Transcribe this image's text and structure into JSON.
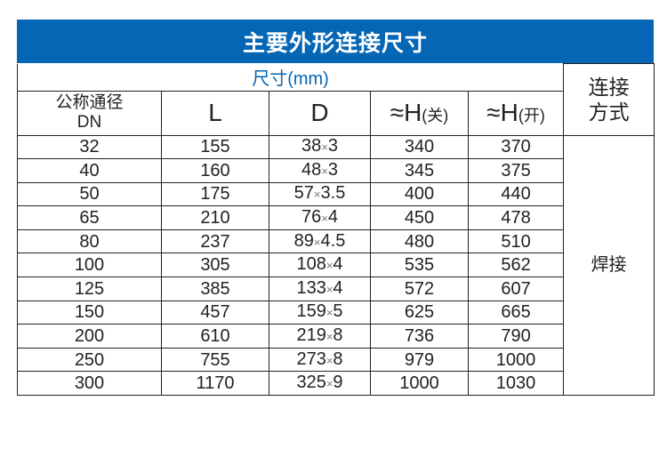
{
  "title": "主要外形连接尺寸",
  "subheader": "尺寸(mm)",
  "headers": {
    "dn": "公称通径",
    "dn2": "DN",
    "L": "L",
    "D": "D",
    "h_close": "≈H",
    "h_close_note": "(关)",
    "h_open": "≈H",
    "h_open_note": "(开)",
    "connection": "连接方式"
  },
  "connection_value": "焊接",
  "rows": [
    {
      "dn": "32",
      "L": "155",
      "D": [
        "38",
        "3"
      ],
      "h_close": "340",
      "h_open": "370"
    },
    {
      "dn": "40",
      "L": "160",
      "D": [
        "48",
        "3"
      ],
      "h_close": "345",
      "h_open": "375"
    },
    {
      "dn": "50",
      "L": "175",
      "D": [
        "57",
        "3.5"
      ],
      "h_close": "400",
      "h_open": "440"
    },
    {
      "dn": "65",
      "L": "210",
      "D": [
        "76",
        "4"
      ],
      "h_close": "450",
      "h_open": "478"
    },
    {
      "dn": "80",
      "L": "237",
      "D": [
        "89",
        "4.5"
      ],
      "h_close": "480",
      "h_open": "510"
    },
    {
      "dn": "100",
      "L": "305",
      "D": [
        "108",
        "4"
      ],
      "h_close": "535",
      "h_open": "562"
    },
    {
      "dn": "125",
      "L": "385",
      "D": [
        "133",
        "4"
      ],
      "h_close": "572",
      "h_open": "607"
    },
    {
      "dn": "150",
      "L": "457",
      "D": [
        "159",
        "5"
      ],
      "h_close": "625",
      "h_open": "665"
    },
    {
      "dn": "200",
      "L": "610",
      "D": [
        "219",
        "8"
      ],
      "h_close": "736",
      "h_open": "790"
    },
    {
      "dn": "250",
      "L": "755",
      "D": [
        "273",
        "8"
      ],
      "h_close": "979",
      "h_open": "1000"
    },
    {
      "dn": "300",
      "L": "1170",
      "D": [
        "325",
        "9"
      ],
      "h_close": "1000",
      "h_open": "1030"
    }
  ],
  "colors": {
    "banner": "#0466b4",
    "subheader_text": "#0466b4"
  }
}
